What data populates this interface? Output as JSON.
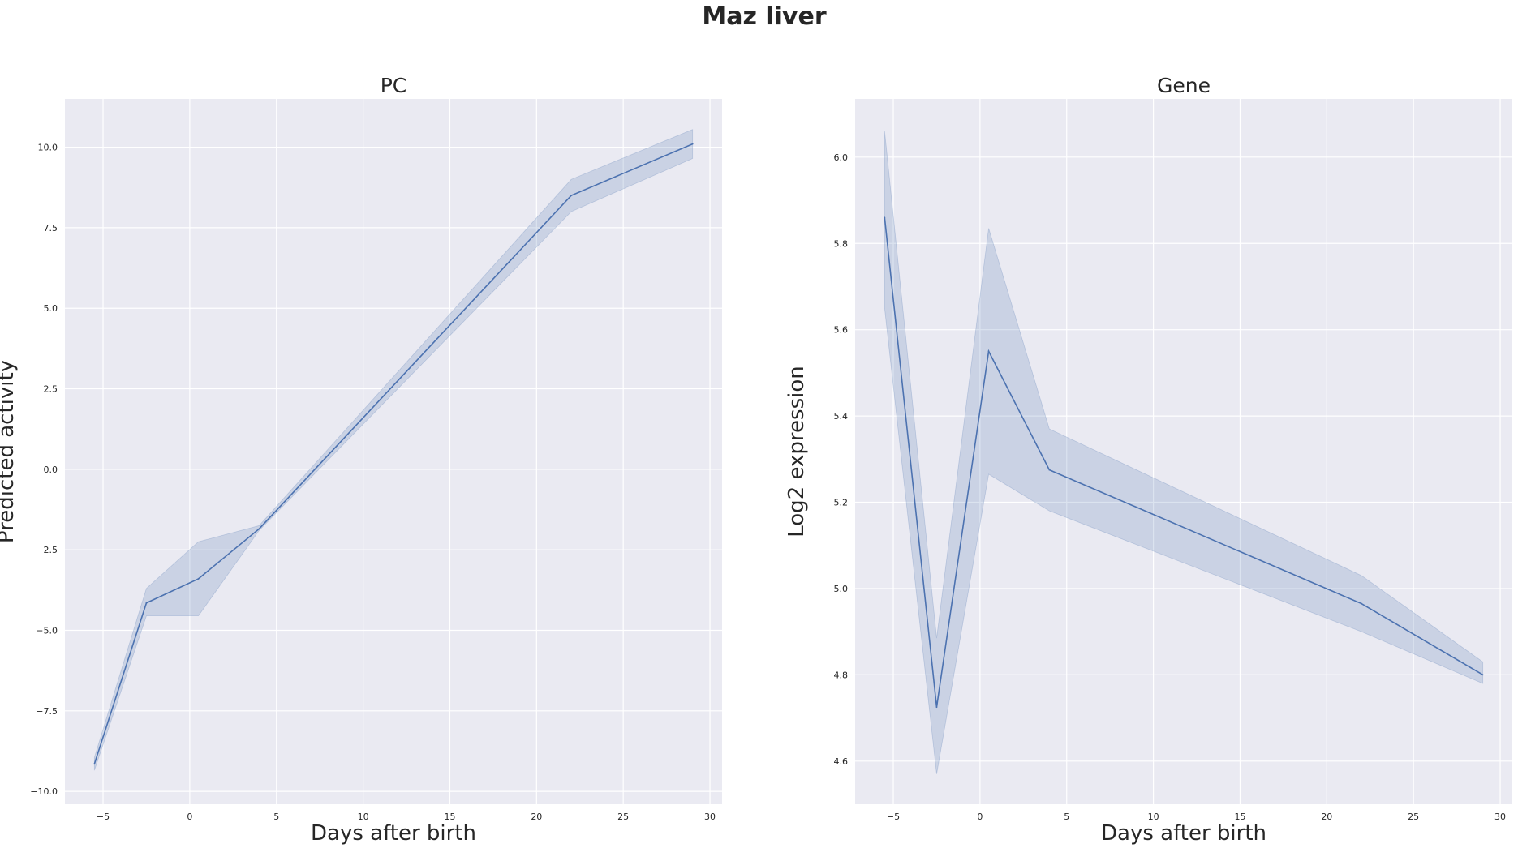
{
  "figure": {
    "title": "Maz liver"
  },
  "chart_data": [
    {
      "type": "line",
      "title": "PC",
      "xlabel": "Days after birth",
      "ylabel": "Predicted activity",
      "xlim": [
        -7.2,
        30.7
      ],
      "ylim": [
        -10.4,
        11.5
      ],
      "xticks": [
        -5,
        0,
        5,
        10,
        15,
        20,
        25,
        30
      ],
      "yticks": [
        -10.0,
        -7.5,
        -5.0,
        -2.5,
        0.0,
        2.5,
        5.0,
        7.5,
        10.0
      ],
      "xtick_labels": [
        "−5",
        "0",
        "5",
        "10",
        "15",
        "20",
        "25",
        "30"
      ],
      "ytick_labels": [
        "−10.0",
        "−7.5",
        "−5.0",
        "−2.5",
        "0.0",
        "2.5",
        "5.0",
        "7.5",
        "10.0"
      ],
      "grid": true,
      "series": [
        {
          "color": "#4c72b0",
          "x": [
            -5.5,
            -2.5,
            0.5,
            4,
            22,
            29
          ],
          "y": [
            -9.15,
            -4.15,
            -3.4,
            -1.85,
            8.5,
            10.1
          ],
          "ci_low": [
            -9.35,
            -4.55,
            -4.55,
            -1.9,
            8.0,
            9.65
          ],
          "ci_high": [
            -8.95,
            -3.7,
            -2.25,
            -1.75,
            9.0,
            10.55
          ]
        }
      ]
    },
    {
      "type": "line",
      "title": "Gene",
      "xlabel": "Days after birth",
      "ylabel": "Log2 expression",
      "xlim": [
        -7.2,
        30.7
      ],
      "ylim": [
        4.5,
        6.135
      ],
      "xticks": [
        -5,
        0,
        5,
        10,
        15,
        20,
        25,
        30
      ],
      "yticks": [
        4.6,
        4.8,
        5.0,
        5.2,
        5.4,
        5.6,
        5.8,
        6.0
      ],
      "xtick_labels": [
        "−5",
        "0",
        "5",
        "10",
        "15",
        "20",
        "25",
        "30"
      ],
      "ytick_labels": [
        "4.6",
        "4.8",
        "5.0",
        "5.2",
        "5.4",
        "5.6",
        "5.8",
        "6.0"
      ],
      "grid": true,
      "series": [
        {
          "color": "#4c72b0",
          "x": [
            -5.5,
            -2.5,
            0.5,
            4,
            22,
            29
          ],
          "y": [
            5.86,
            4.725,
            5.55,
            5.275,
            4.965,
            4.8
          ],
          "ci_low": [
            5.65,
            4.57,
            5.265,
            5.18,
            4.9,
            4.78
          ],
          "ci_high": [
            6.06,
            4.885,
            5.835,
            5.37,
            5.03,
            4.83
          ]
        }
      ]
    }
  ]
}
